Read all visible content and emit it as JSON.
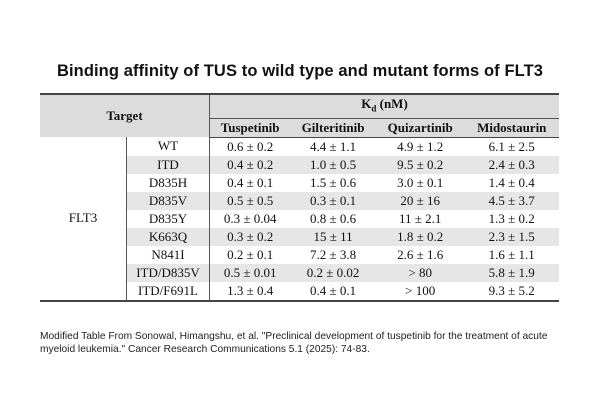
{
  "title": "Binding affinity of TUS to wild type and mutant forms of FLT3",
  "table": {
    "target_header": "Target",
    "kd_header_main": "K",
    "kd_header_sub": "d",
    "kd_header_unit": " (nM)",
    "gene": "FLT3",
    "drugs": [
      "Tuspetinib",
      "Gilteritinib",
      "Quizartinib",
      "Midostaurin"
    ],
    "rows": [
      {
        "target": "WT",
        "values": [
          "0.6 ± 0.2",
          "4.4 ± 1.1",
          "4.9 ± 1.2",
          "6.1 ± 2.5"
        ]
      },
      {
        "target": "ITD",
        "values": [
          "0.4 ± 0.2",
          "1.0 ± 0.5",
          "9.5 ± 0.2",
          "2.4 ± 0.3"
        ]
      },
      {
        "target": "D835H",
        "values": [
          "0.4 ± 0.1",
          "1.5 ± 0.6",
          "3.0 ± 0.1",
          "1.4 ± 0.4"
        ]
      },
      {
        "target": "D835V",
        "values": [
          "0.5 ± 0.5",
          "0.3 ± 0.1",
          "20 ± 16",
          "4.5 ± 3.7"
        ]
      },
      {
        "target": "D835Y",
        "values": [
          "0.3 ± 0.04",
          "0.8 ± 0.6",
          "11 ± 2.1",
          "1.3 ± 0.2"
        ]
      },
      {
        "target": "K663Q",
        "values": [
          "0.3 ± 0.2",
          "15 ± 11",
          "1.8 ± 0.2",
          "2.3 ± 1.5"
        ]
      },
      {
        "target": "N841I",
        "values": [
          "0.2 ± 0.1",
          "7.2 ± 3.8",
          "2.6 ± 1.6",
          "1.6 ± 1.1"
        ]
      },
      {
        "target": "ITD/D835V",
        "values": [
          "0.5 ± 0.01",
          "0.2 ± 0.02",
          "> 80",
          "5.8 ± 1.9"
        ]
      },
      {
        "target": "ITD/F691L",
        "values": [
          "1.3 ± 0.4",
          "0.4 ± 0.1",
          "> 100",
          "9.3 ± 5.2"
        ]
      }
    ]
  },
  "caption": "Modified Table From Sonowal, Himangshu, et al. \"Preclinical development of tuspetinib for the treatment of acute myeloid leukemia.\" Cancer Research Communications 5.1 (2025): 74-83."
}
